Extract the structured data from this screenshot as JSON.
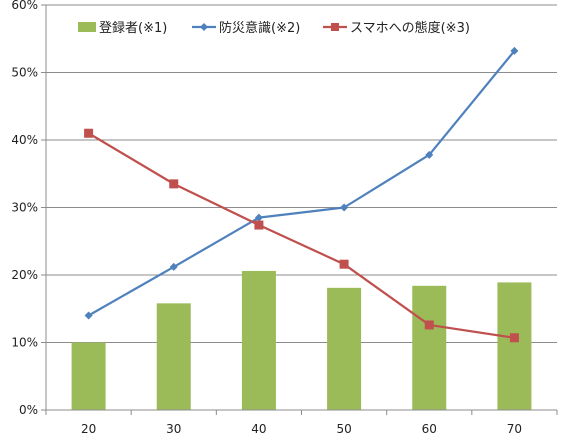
{
  "chart_data": {
    "type": "bar",
    "categories": [
      "20",
      "30",
      "40",
      "50",
      "60",
      "70"
    ],
    "ylim": [
      0,
      60
    ],
    "yticks": [
      0,
      10,
      20,
      30,
      40,
      50,
      60
    ],
    "ytick_labels": [
      "0%",
      "10%",
      "20%",
      "30%",
      "40%",
      "50%",
      "60%"
    ],
    "grid": true,
    "legend_position": "top",
    "series": [
      {
        "name": "登録者(※1)",
        "type": "bar",
        "color": "#9bbb59",
        "values": [
          10,
          15.8,
          20.6,
          18.1,
          18.4,
          18.9
        ]
      },
      {
        "name": "防災意識(※2)",
        "type": "line",
        "marker": "diamond",
        "color": "#4f81bd",
        "values": [
          14,
          21.2,
          28.5,
          30,
          37.8,
          53.2
        ]
      },
      {
        "name": "スマホへの態度(※3)",
        "type": "line",
        "marker": "square",
        "color": "#c0504d",
        "values": [
          41,
          33.5,
          27.4,
          21.6,
          12.6,
          10.7
        ]
      }
    ]
  }
}
